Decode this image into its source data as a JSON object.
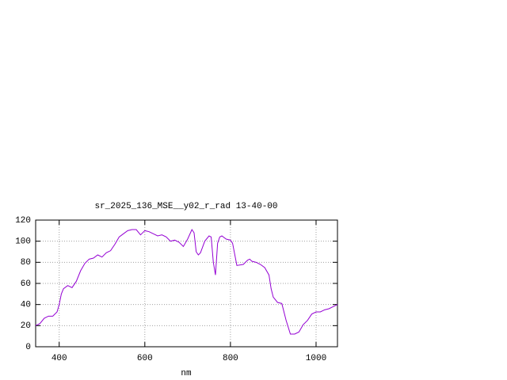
{
  "chart_data": {
    "type": "line",
    "title": "sr_2025_136_MSE__y02_r_rad 13-40-00",
    "x_label": "nm",
    "x": [
      345,
      355,
      365,
      375,
      385,
      395,
      400,
      405,
      410,
      420,
      430,
      440,
      450,
      460,
      470,
      480,
      490,
      500,
      510,
      520,
      530,
      540,
      550,
      560,
      570,
      580,
      590,
      600,
      610,
      620,
      630,
      640,
      650,
      660,
      670,
      680,
      690,
      700,
      710,
      715,
      720,
      725,
      730,
      740,
      750,
      755,
      760,
      765,
      770,
      775,
      780,
      790,
      800,
      805,
      815,
      830,
      840,
      845,
      850,
      860,
      870,
      880,
      890,
      895,
      900,
      910,
      920,
      930,
      940,
      950,
      960,
      970,
      980,
      990,
      1000,
      1010,
      1020,
      1030,
      1040,
      1050
    ],
    "series": [
      {
        "color": "#9400d3",
        "values": [
          20,
          22,
          27,
          29,
          29,
          33,
          40,
          50,
          55,
          58,
          56,
          62,
          72,
          79,
          83,
          84,
          87,
          85,
          89,
          91,
          97,
          104,
          107,
          110,
          111,
          111,
          106,
          110,
          109,
          107,
          105,
          106,
          104,
          100,
          101,
          99,
          95,
          102,
          111,
          108,
          90,
          87,
          89,
          100,
          105,
          104,
          80,
          68,
          98,
          104,
          105,
          102,
          101,
          98,
          77,
          78,
          82,
          83,
          81,
          80,
          78,
          75,
          68,
          55,
          47,
          42,
          41,
          25,
          12,
          12,
          14,
          21,
          25,
          31,
          33,
          33,
          35,
          36,
          38,
          40
        ]
      }
    ],
    "xlim": [
      345,
      1050
    ],
    "ylim": [
      0,
      120
    ],
    "xticks": [
      400,
      600,
      800,
      1000
    ],
    "yticks": [
      0,
      20,
      40,
      60,
      80,
      100,
      120
    ],
    "grid": true
  }
}
